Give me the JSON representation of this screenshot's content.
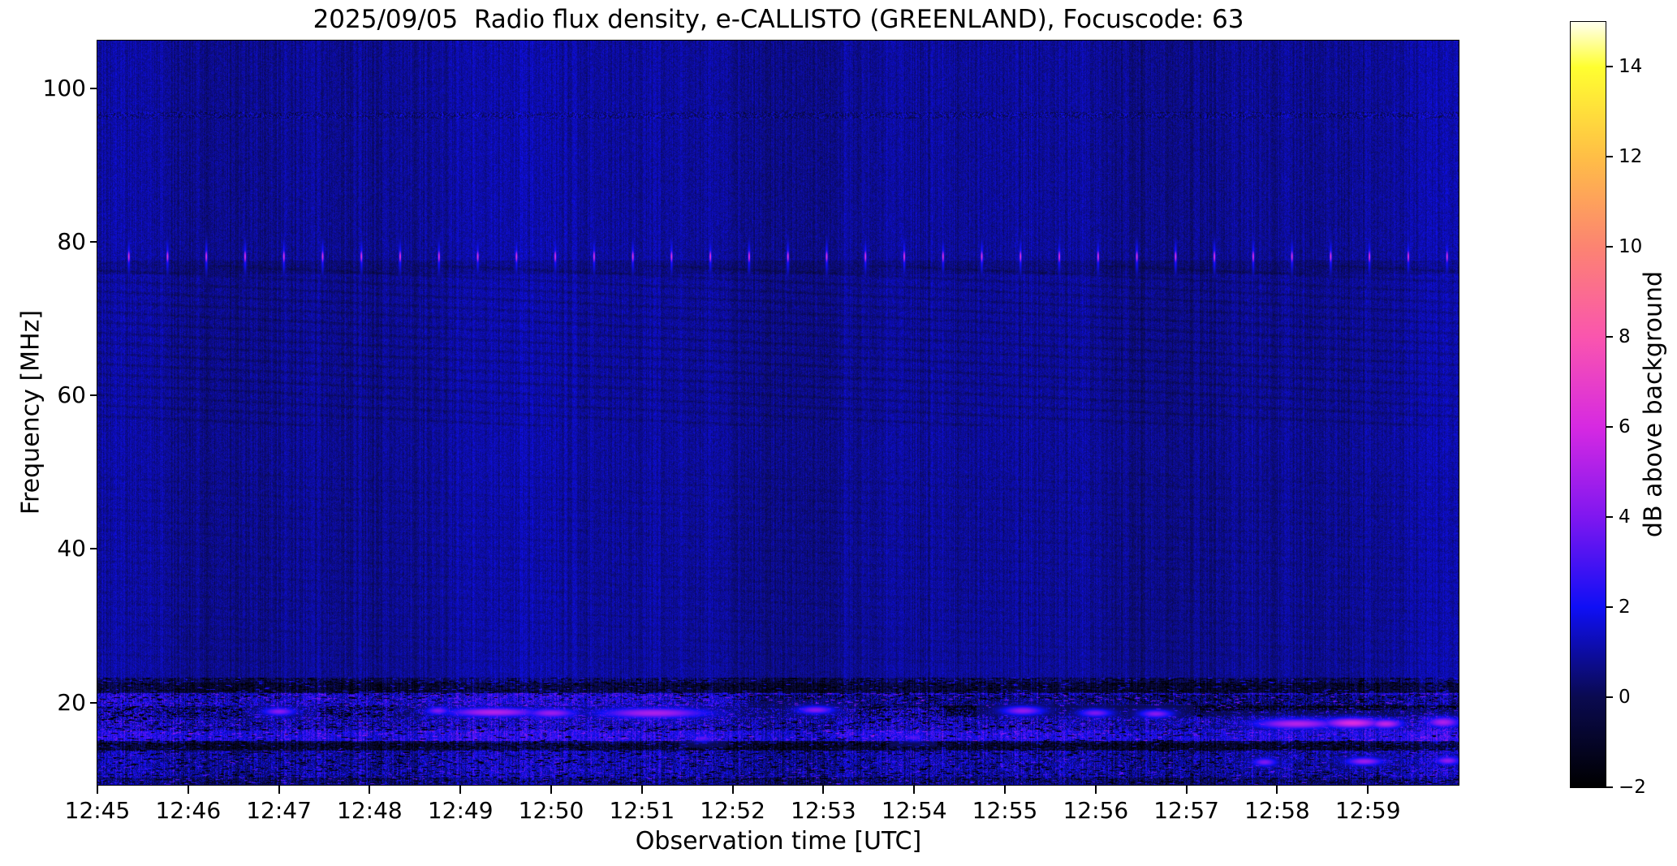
{
  "figure": {
    "title": "2025/09/05  Radio flux density, e-CALLISTO (GREENLAND), Focuscode: 63",
    "background_color": "#ffffff"
  },
  "chart_data": {
    "type": "heatmap",
    "title": "2025/09/05  Radio flux density, e-CALLISTO (GREENLAND), Focuscode: 63",
    "xlabel": "Observation time [UTC]",
    "ylabel": "Frequency [MHz]",
    "colorbar_label": "dB above background",
    "x_tick_labels": [
      "12:45",
      "12:46",
      "12:47",
      "12:48",
      "12:49",
      "12:50",
      "12:51",
      "12:52",
      "12:53",
      "12:54",
      "12:55",
      "12:56",
      "12:57",
      "12:58",
      "12:59"
    ],
    "x_tick_minutes": [
      0,
      1,
      2,
      3,
      4,
      5,
      6,
      7,
      8,
      9,
      10,
      11,
      12,
      13,
      14
    ],
    "time_range_utc": [
      "12:45:00",
      "13:00:00"
    ],
    "time_span_s": 900,
    "y_tick_labels": [
      "100",
      "80",
      "60",
      "40",
      "20"
    ],
    "y_tick_values_mhz": [
      100,
      80,
      60,
      40,
      20
    ],
    "freq_range_mhz": [
      9.3,
      106.2
    ],
    "colorbar_tick_labels": [
      "14",
      "12",
      "10",
      "8",
      "6",
      "4",
      "2",
      "0",
      "−2"
    ],
    "colorbar_tick_values": [
      14,
      12,
      10,
      8,
      6,
      4,
      2,
      0,
      -2
    ],
    "colorbar_range_db": [
      -2,
      15
    ],
    "grid": false,
    "legend": "none (colorbar on right)",
    "colormap_name": "gnuplot2-like (black-blue-violet-magenta-pink-orange-yellow-white)",
    "colormap_stops": [
      [
        0.0,
        0,
        0,
        0
      ],
      [
        0.118,
        10,
        10,
        80
      ],
      [
        0.235,
        15,
        15,
        245
      ],
      [
        0.353,
        127,
        23,
        240
      ],
      [
        0.47,
        214,
        41,
        226
      ],
      [
        0.588,
        250,
        85,
        174
      ],
      [
        0.705,
        252,
        131,
        114
      ],
      [
        0.823,
        255,
        190,
        70
      ],
      [
        0.941,
        255,
        255,
        48
      ],
      [
        1.0,
        255,
        255,
        239
      ]
    ],
    "spectrogram": {
      "description": "Quiet dark-blue background (~0.5-1 dB) with fine vertical noise striations; periodic bright pink calibration dots along 78 MHz every ~26 s; faint disturbed horizontal line near 96.5 MHz; faint slowly-descending diagonal interference streaks between ~56-77 MHz; strong noisy ionospheric/RFI activity below ~23 MHz with alternating bright-blue and black bands and occasional magenta bursts (notably near 12:49-12:51 at ~18.6 MHz and 12:57-12:59 at ~17.3 MHz).",
      "background_db": 0.85,
      "noise_sd_db": 0.52,
      "striation_amp_db": 0.42,
      "disturbed_line_mhz": 96.5,
      "dark_lane_mhz": [
        75.8,
        77.6
      ],
      "calibration_dots": {
        "frequency_mhz": 78.1,
        "start_s": 20.5,
        "period_s": 25.65,
        "peak_db": 7.3,
        "sd_t_s": 0.45,
        "sd_f_mhz": 0.55,
        "halo_peak_db": 2.6,
        "halo_sd_f_mhz": 1.7
      },
      "diagonal_streaks": {
        "region_mhz": [
          56,
          77
        ],
        "weak_region_mhz": [
          25,
          50
        ],
        "slope_mhz_per_min": -0.55,
        "spacing_mhz": 1.35,
        "strength_db": 0.38
      },
      "ionosphere_top_mhz": 23.2,
      "bands": [
        {
          "f": [
            21.2,
            23.2
          ],
          "mean_db": 0.1,
          "sd_db": 1.0,
          "dark_patch_p": 0.03
        },
        {
          "f": [
            19.5,
            21.2
          ],
          "mean_db": 1.7,
          "sd_db": 1.6,
          "dark_patch_p": 0.022
        },
        {
          "f": [
            18.0,
            19.5
          ],
          "mean_db": 1.0,
          "sd_db": 1.9,
          "dark_patch_p": 0.05
        },
        {
          "f": [
            16.3,
            18.0
          ],
          "mean_db": 1.4,
          "sd_db": 1.7,
          "dark_patch_p": 0.028
        },
        {
          "f": [
            15.0,
            16.3
          ],
          "mean_db": 2.1,
          "sd_db": 1.2,
          "dark_patch_p": 0.012
        },
        {
          "f": [
            13.7,
            15.0
          ],
          "mean_db": 0.1,
          "sd_db": 1.2,
          "dark_patch_p": 0.04
        },
        {
          "f": [
            9.3,
            13.7
          ],
          "mean_db": 1.1,
          "sd_db": 1.4,
          "dark_patch_p": 0.022
        }
      ],
      "dark_strips": [
        {
          "f": [
            19.3,
            21.0
          ],
          "t_s": [
            430,
            900
          ],
          "delta_db": -1.2
        },
        {
          "f": [
            18.2,
            19.6
          ],
          "t_s": [
            560,
            900
          ],
          "delta_db": -1.1
        },
        {
          "f": [
            21.3,
            22.6
          ],
          "t_s": [
            0,
            900
          ],
          "delta_db": -0.7
        },
        {
          "f": [
            13.8,
            14.7
          ],
          "t_s": [
            0,
            900
          ],
          "delta_db": -0.8
        },
        {
          "f": [
            9.3,
            10.2
          ],
          "t_s": [
            0,
            900
          ],
          "delta_db": -0.8
        }
      ],
      "hotspots": [
        {
          "t_s": 120,
          "f_mhz": 18.8,
          "sd_t_s": 8,
          "sd_f_mhz": 0.4,
          "peak_db": 4.2
        },
        {
          "t_s": 225,
          "f_mhz": 18.9,
          "sd_t_s": 6,
          "sd_f_mhz": 0.4,
          "peak_db": 4.0
        },
        {
          "t_s": 262,
          "f_mhz": 18.7,
          "sd_t_s": 22,
          "sd_f_mhz": 0.45,
          "peak_db": 5.2
        },
        {
          "t_s": 300,
          "f_mhz": 18.6,
          "sd_t_s": 12,
          "sd_f_mhz": 0.45,
          "peak_db": 4.6
        },
        {
          "t_s": 368,
          "f_mhz": 18.6,
          "sd_t_s": 26,
          "sd_f_mhz": 0.5,
          "peak_db": 5.0
        },
        {
          "t_s": 400,
          "f_mhz": 15.3,
          "sd_t_s": 5,
          "sd_f_mhz": 0.35,
          "peak_db": 3.5
        },
        {
          "t_s": 475,
          "f_mhz": 19.0,
          "sd_t_s": 9,
          "sd_f_mhz": 0.4,
          "peak_db": 4.2
        },
        {
          "t_s": 540,
          "f_mhz": 15.4,
          "sd_t_s": 5,
          "sd_f_mhz": 0.35,
          "peak_db": 3.3
        },
        {
          "t_s": 612,
          "f_mhz": 18.9,
          "sd_t_s": 10,
          "sd_f_mhz": 0.45,
          "peak_db": 4.4
        },
        {
          "t_s": 660,
          "f_mhz": 18.6,
          "sd_t_s": 8,
          "sd_f_mhz": 0.4,
          "peak_db": 4.0
        },
        {
          "t_s": 700,
          "f_mhz": 18.5,
          "sd_t_s": 8,
          "sd_f_mhz": 0.4,
          "peak_db": 4.2
        },
        {
          "t_s": 772,
          "f_mhz": 12.2,
          "sd_t_s": 6,
          "sd_f_mhz": 0.4,
          "peak_db": 4.0
        },
        {
          "t_s": 793,
          "f_mhz": 17.2,
          "sd_t_s": 20,
          "sd_f_mhz": 0.5,
          "peak_db": 5.2
        },
        {
          "t_s": 830,
          "f_mhz": 17.3,
          "sd_t_s": 14,
          "sd_f_mhz": 0.5,
          "peak_db": 6.2
        },
        {
          "t_s": 838,
          "f_mhz": 12.3,
          "sd_t_s": 9,
          "sd_f_mhz": 0.4,
          "peak_db": 4.6
        },
        {
          "t_s": 852,
          "f_mhz": 17.2,
          "sd_t_s": 8,
          "sd_f_mhz": 0.45,
          "peak_db": 5.5
        },
        {
          "t_s": 890,
          "f_mhz": 17.4,
          "sd_t_s": 8,
          "sd_f_mhz": 0.5,
          "peak_db": 5.0
        },
        {
          "t_s": 893,
          "f_mhz": 12.4,
          "sd_t_s": 6,
          "sd_f_mhz": 0.4,
          "peak_db": 4.4
        }
      ]
    }
  }
}
